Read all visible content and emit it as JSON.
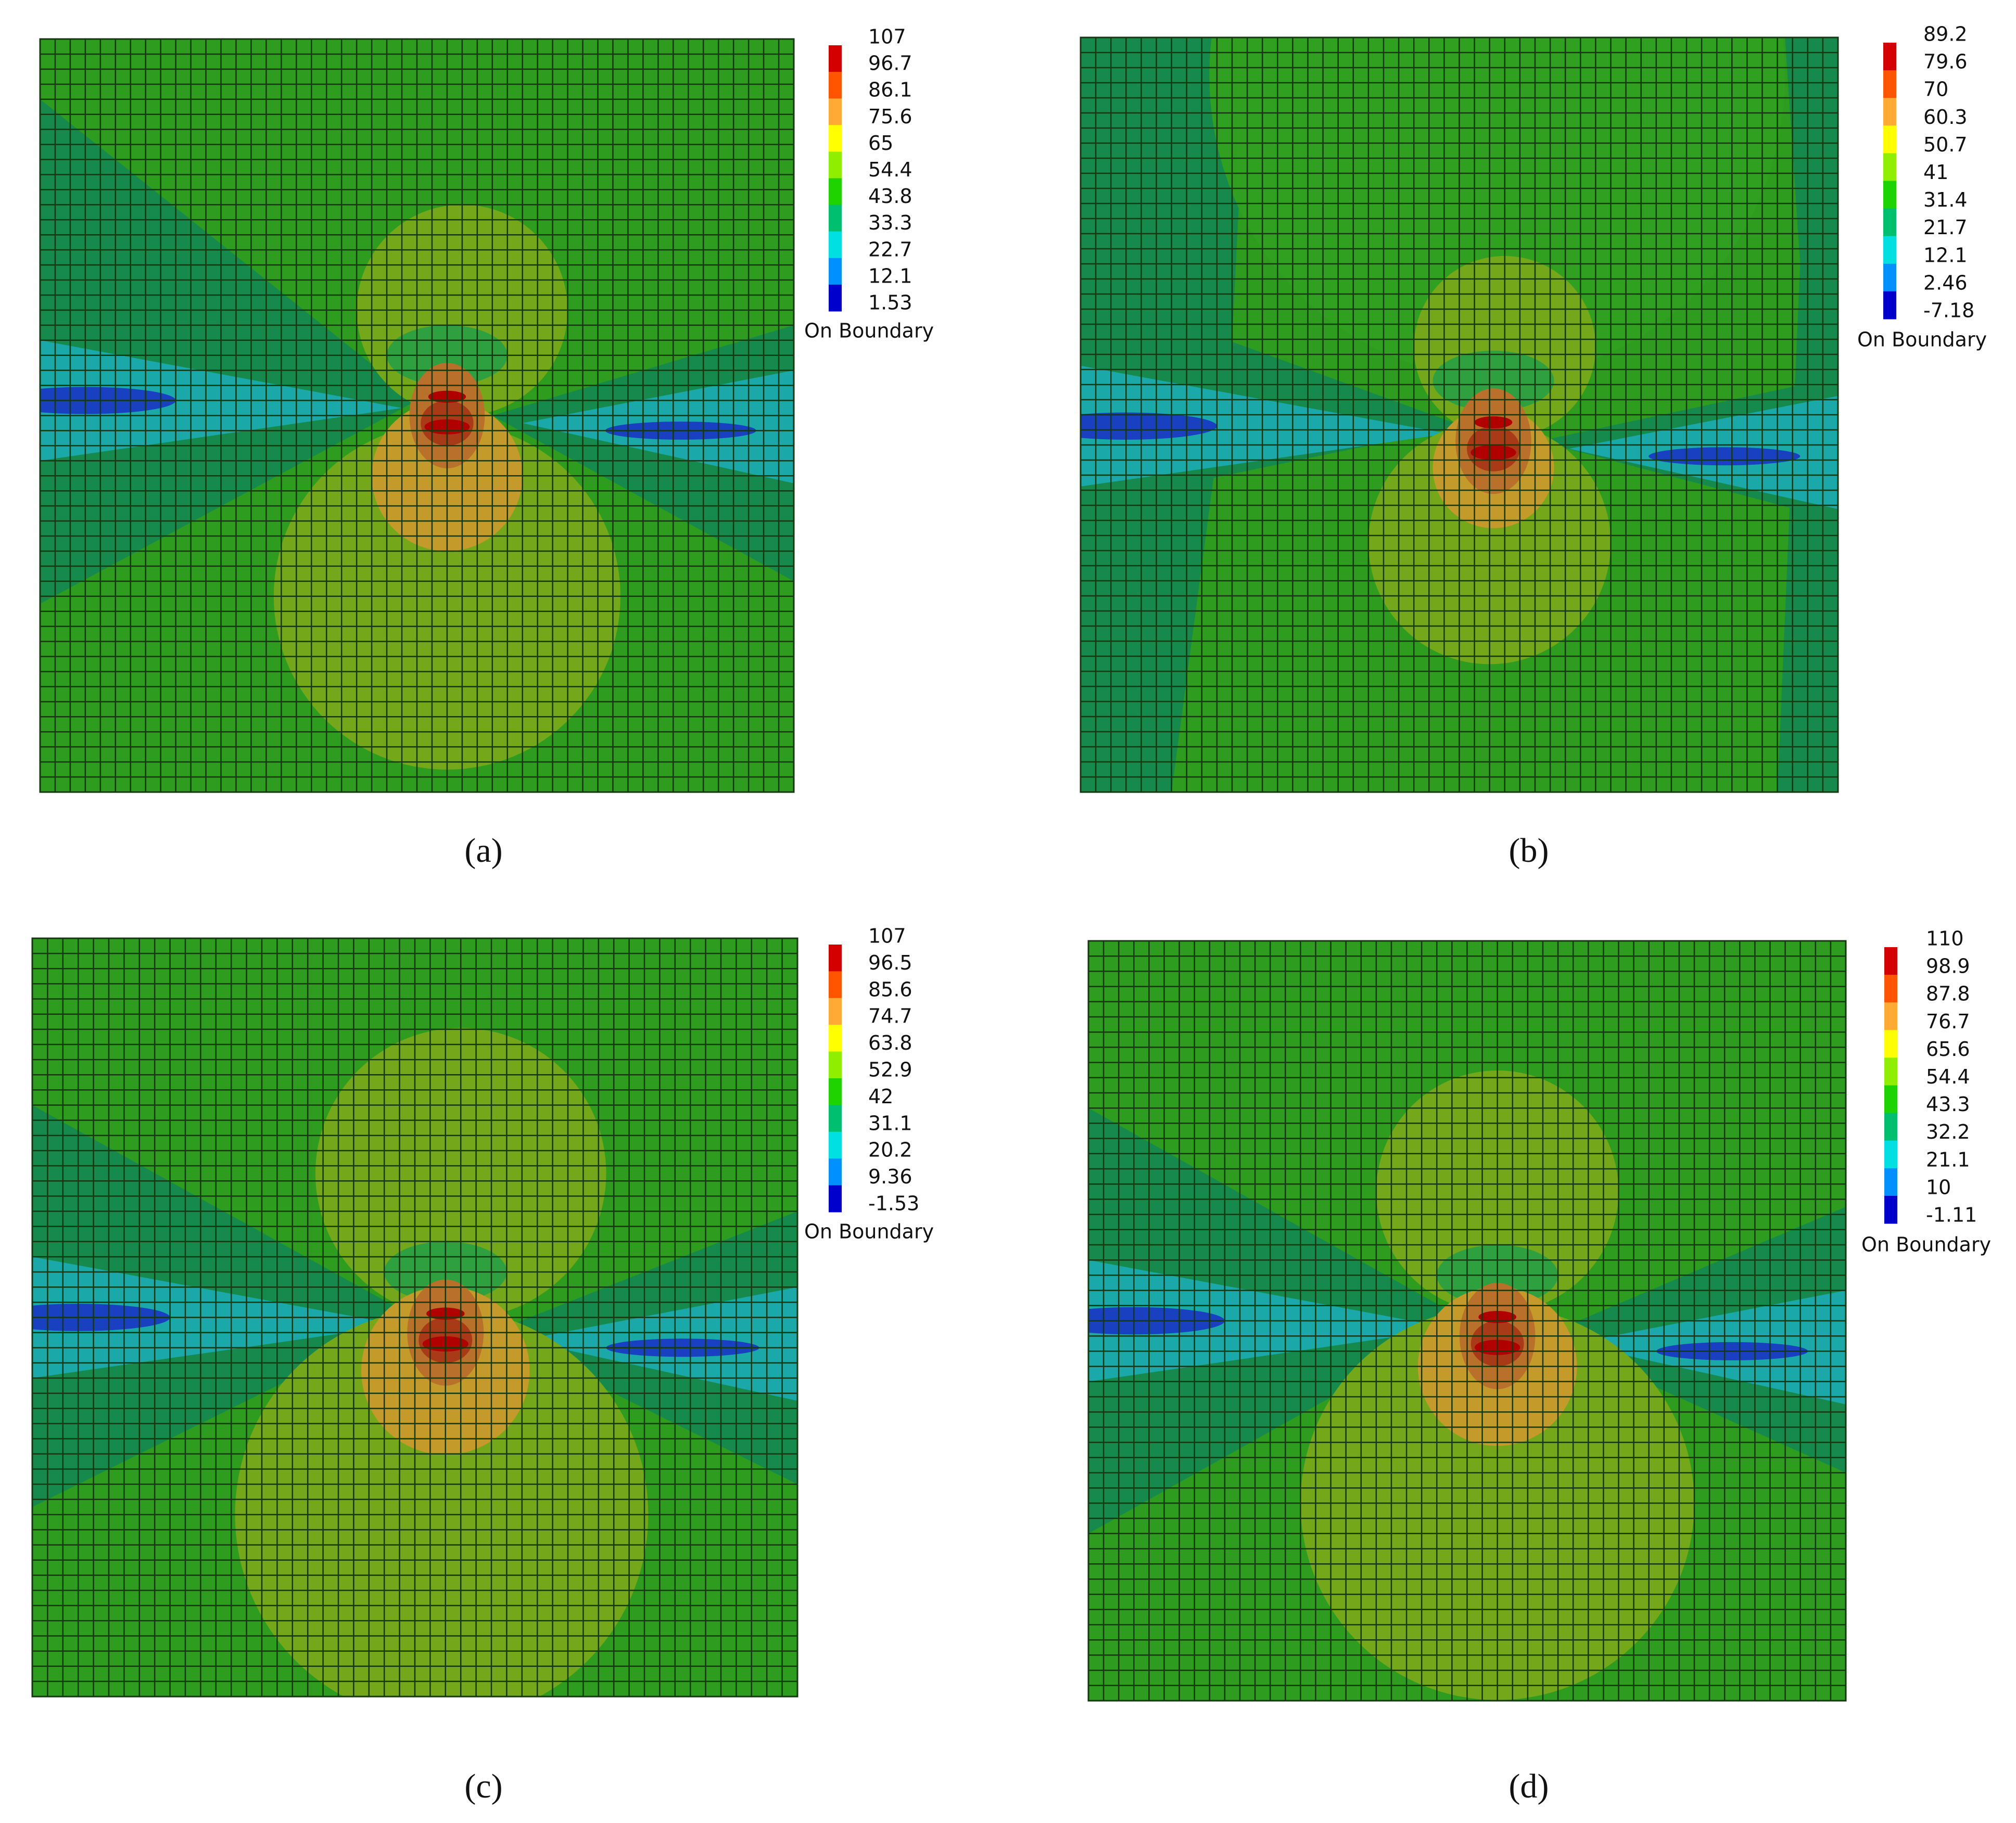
{
  "panels": [
    {
      "caption": "(a)",
      "legend": {
        "labels": [
          "107",
          "96.7",
          "86.1",
          "75.6",
          "65",
          "54.4",
          "43.8",
          "33.3",
          "22.7",
          "12.1",
          "1.53"
        ],
        "note": "On Boundary"
      }
    },
    {
      "caption": "(b)",
      "legend": {
        "labels": [
          "89.2",
          "79.6",
          "70",
          "60.3",
          "50.7",
          "41",
          "31.4",
          "21.7",
          "12.1",
          "2.46",
          "-7.18"
        ],
        "note": "On Boundary"
      }
    },
    {
      "caption": "(c)",
      "legend": {
        "labels": [
          "107",
          "96.5",
          "85.6",
          "74.7",
          "63.8",
          "52.9",
          "42",
          "31.1",
          "20.2",
          "9.36",
          "-1.53"
        ],
        "note": "On Boundary"
      }
    },
    {
      "caption": "(d)",
      "legend": {
        "labels": [
          "110",
          "98.9",
          "87.8",
          "76.7",
          "65.6",
          "54.4",
          "43.3",
          "32.2",
          "21.1",
          "10",
          "-1.11"
        ],
        "note": "On Boundary"
      }
    }
  ]
}
